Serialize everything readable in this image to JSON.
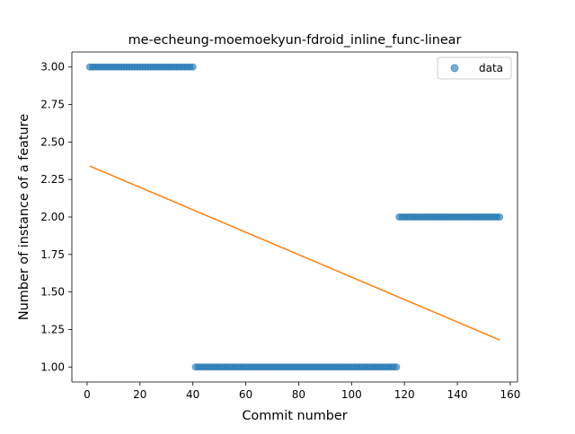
{
  "chart_data": {
    "type": "scatter",
    "title": "me-echeung-moemoekyun-fdroid_inline_func-linear",
    "xlabel": "Commit number",
    "ylabel": "Number of instance of a feature",
    "xlim": [
      -5.75,
      162.75
    ],
    "ylim": [
      0.9,
      3.1
    ],
    "xticks": [
      0,
      20,
      40,
      60,
      80,
      100,
      120,
      140,
      160
    ],
    "xtick_labels": [
      "0",
      "20",
      "40",
      "60",
      "80",
      "100",
      "120",
      "140",
      "160"
    ],
    "yticks": [
      1.0,
      1.25,
      1.5,
      1.75,
      2.0,
      2.25,
      2.5,
      2.75,
      3.0
    ],
    "ytick_labels": [
      "1.00",
      "1.25",
      "1.50",
      "1.75",
      "2.00",
      "2.25",
      "2.50",
      "2.75",
      "3.00"
    ],
    "grid": false,
    "legend": {
      "placement": "upper right",
      "entries": [
        "data"
      ]
    },
    "series": [
      {
        "name": "data",
        "kind": "scatter",
        "color": "#1f77b4",
        "opacity": 0.6,
        "segments": [
          {
            "x_from": 1,
            "x_to": 40,
            "y": 3
          },
          {
            "x_from": 41,
            "x_to": 117,
            "y": 1
          },
          {
            "x_from": 118,
            "x_to": 156,
            "y": 2
          }
        ]
      },
      {
        "kind": "line",
        "color": "#ff7f0e",
        "x": [
          1,
          156
        ],
        "y": [
          2.34,
          1.18
        ]
      }
    ]
  }
}
